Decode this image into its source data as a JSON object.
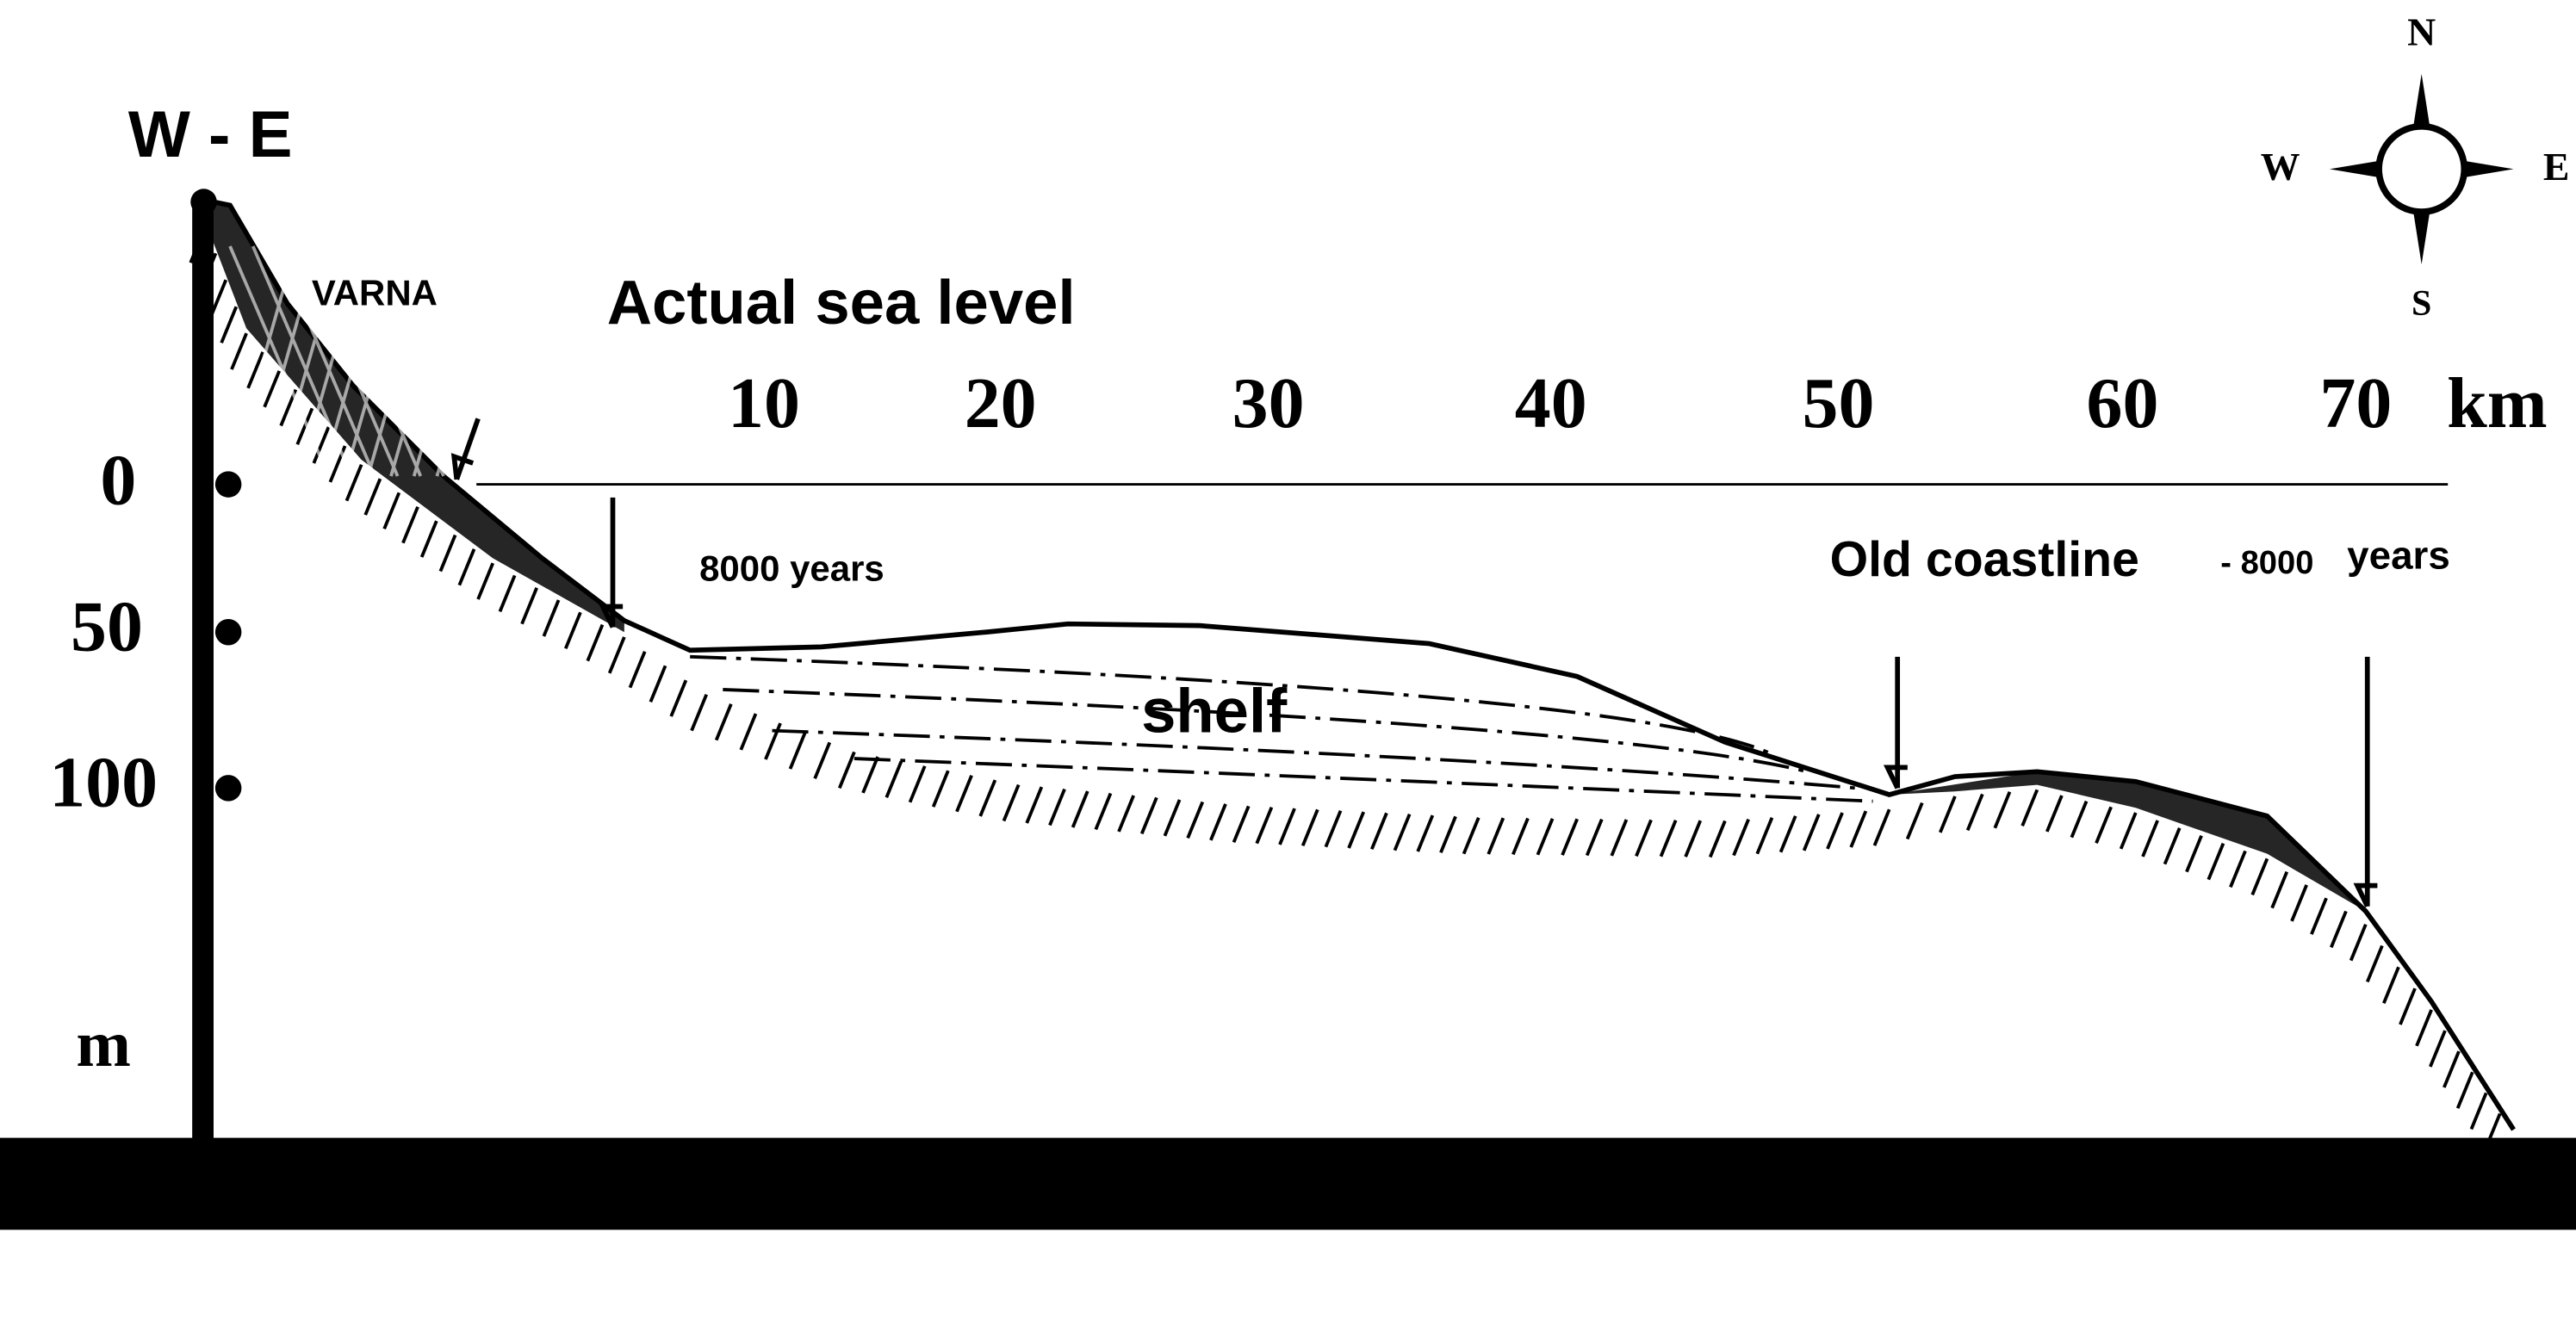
{
  "header": {
    "direction": "W - E"
  },
  "compass": {
    "north": "N",
    "south": "S",
    "west": "W",
    "east": "E"
  },
  "labels": {
    "city": "VARNA",
    "sea_level": "Actual sea level",
    "shelf": "shelf",
    "left_marker": "8000 years",
    "old_coastline": "Old coastline",
    "right_marker_prefix": "- 8000",
    "right_marker_suffix": "years"
  },
  "distance_axis": {
    "labels": [
      "10",
      "20",
      "30",
      "40",
      "50",
      "60",
      "70"
    ],
    "unit": "km"
  },
  "depth_axis": {
    "labels": [
      "0",
      "50",
      "100"
    ],
    "unit": "m"
  }
}
